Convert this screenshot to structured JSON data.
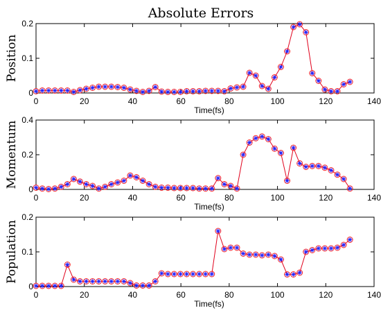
{
  "figure": {
    "title": "Absolute Errors"
  },
  "chart_data": [
    {
      "type": "line",
      "ylabel": "Position",
      "xlabel": "Time(fs)",
      "xlim": [
        0,
        140
      ],
      "ylim": [
        0,
        0.2
      ],
      "xticks": [
        0,
        20,
        40,
        60,
        80,
        100,
        120,
        140
      ],
      "yticks": [
        0,
        0.1,
        0.2
      ],
      "x": [
        0,
        2.6,
        5.2,
        7.8,
        10.4,
        13,
        15.6,
        18.2,
        20.8,
        23.4,
        26,
        28.6,
        31.2,
        33.8,
        36.4,
        39,
        41.6,
        44.2,
        46.8,
        49.4,
        52,
        54.6,
        57.2,
        59.8,
        62.4,
        65,
        67.6,
        70.2,
        72.8,
        75.4,
        78,
        80.6,
        83.2,
        85.8,
        88.4,
        91,
        93.6,
        96.2,
        98.8,
        101.4,
        104,
        106.6,
        109.2,
        111.8,
        114.4,
        117,
        119.6,
        122.2,
        124.8,
        127.4,
        130
      ],
      "series": [
        {
          "values": [
            0.005,
            0.007,
            0.007,
            0.007,
            0.007,
            0.007,
            0.003,
            0.008,
            0.012,
            0.015,
            0.018,
            0.018,
            0.018,
            0.017,
            0.015,
            0.01,
            0.006,
            0.003,
            0.006,
            0.017,
            0.004,
            0.003,
            0.003,
            0.003,
            0.005,
            0.005,
            0.005,
            0.006,
            0.006,
            0.006,
            0.005,
            0.013,
            0.016,
            0.018,
            0.058,
            0.05,
            0.02,
            0.012,
            0.045,
            0.075,
            0.12,
            0.19,
            0.198,
            0.175,
            0.057,
            0.035,
            0.01,
            0.005,
            0.005,
            0.025,
            0.032
          ]
        }
      ]
    },
    {
      "type": "line",
      "ylabel": "Momentum",
      "xlabel": "Time(fs)",
      "xlim": [
        0,
        140
      ],
      "ylim": [
        0,
        0.4
      ],
      "xticks": [
        0,
        20,
        40,
        60,
        80,
        100,
        120,
        140
      ],
      "yticks": [
        0,
        0.2,
        0.4
      ],
      "x": [
        0,
        2.6,
        5.2,
        7.8,
        10.4,
        13,
        15.6,
        18.2,
        20.8,
        23.4,
        26,
        28.6,
        31.2,
        33.8,
        36.4,
        39,
        41.6,
        44.2,
        46.8,
        49.4,
        52,
        54.6,
        57.2,
        59.8,
        62.4,
        65,
        67.6,
        70.2,
        72.8,
        75.4,
        78,
        80.6,
        83.2,
        85.8,
        88.4,
        91,
        93.6,
        96.2,
        98.8,
        101.4,
        104,
        106.6,
        109.2,
        111.8,
        114.4,
        117,
        119.6,
        122.2,
        124.8,
        127.4,
        130
      ],
      "series": [
        {
          "values": [
            0.01,
            0.005,
            0.002,
            0.005,
            0.015,
            0.03,
            0.06,
            0.045,
            0.03,
            0.02,
            0.005,
            0.015,
            0.03,
            0.04,
            0.05,
            0.08,
            0.07,
            0.05,
            0.03,
            0.015,
            0.01,
            0.01,
            0.008,
            0.008,
            0.008,
            0.008,
            0.005,
            0.005,
            0.005,
            0.065,
            0.03,
            0.02,
            0.005,
            0.2,
            0.27,
            0.295,
            0.305,
            0.29,
            0.235,
            0.21,
            0.05,
            0.24,
            0.15,
            0.13,
            0.135,
            0.135,
            0.125,
            0.11,
            0.085,
            0.06,
            0.005
          ]
        }
      ]
    },
    {
      "type": "line",
      "ylabel": "Population",
      "xlabel": "Time(fs)",
      "xlim": [
        0,
        140
      ],
      "ylim": [
        0,
        0.2
      ],
      "xticks": [
        0,
        20,
        40,
        60,
        80,
        100,
        120,
        140
      ],
      "yticks": [
        0,
        0.1,
        0.2
      ],
      "x": [
        0,
        2.6,
        5.2,
        7.8,
        10.4,
        13,
        15.6,
        18.2,
        20.8,
        23.4,
        26,
        28.6,
        31.2,
        33.8,
        36.4,
        39,
        41.6,
        44.2,
        46.8,
        49.4,
        52,
        54.6,
        57.2,
        59.8,
        62.4,
        65,
        67.6,
        70.2,
        72.8,
        75.4,
        78,
        80.6,
        83.2,
        85.8,
        88.4,
        91,
        93.6,
        96.2,
        98.8,
        101.4,
        104,
        106.6,
        109.2,
        111.8,
        114.4,
        117,
        119.6,
        122.2,
        124.8,
        127.4,
        130
      ],
      "series": [
        {
          "values": [
            0.002,
            0.002,
            0.002,
            0.002,
            0.002,
            0.063,
            0.02,
            0.015,
            0.015,
            0.015,
            0.015,
            0.015,
            0.015,
            0.015,
            0.015,
            0.01,
            0.003,
            0.003,
            0.003,
            0.015,
            0.038,
            0.036,
            0.036,
            0.036,
            0.036,
            0.036,
            0.036,
            0.036,
            0.036,
            0.16,
            0.108,
            0.112,
            0.112,
            0.095,
            0.092,
            0.092,
            0.09,
            0.092,
            0.088,
            0.078,
            0.035,
            0.035,
            0.04,
            0.1,
            0.105,
            0.11,
            0.11,
            0.11,
            0.112,
            0.12,
            0.135
          ]
        }
      ]
    }
  ]
}
